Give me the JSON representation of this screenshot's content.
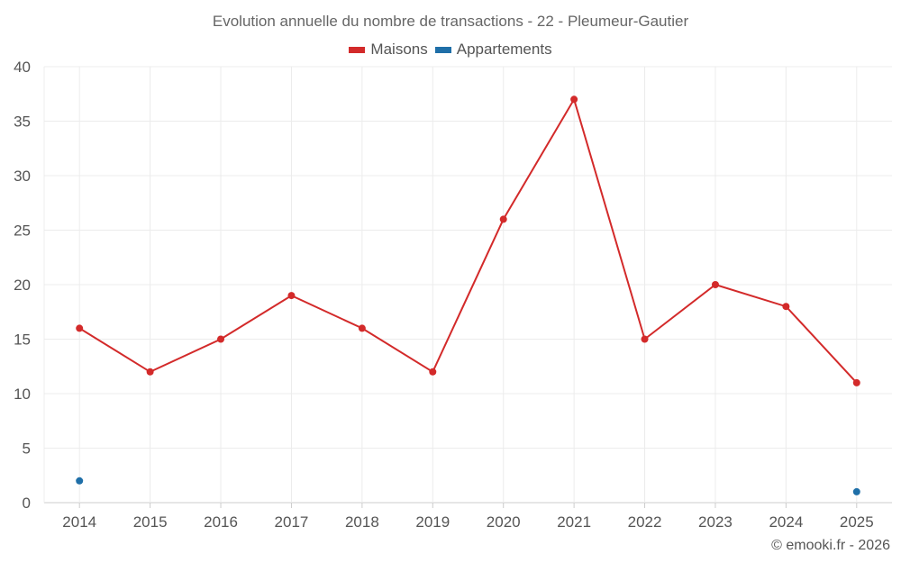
{
  "chart_data": {
    "type": "line",
    "title": "Evolution annuelle du nombre de transactions - 22 - Pleumeur-Gautier",
    "categories": [
      "2014",
      "2015",
      "2016",
      "2017",
      "2018",
      "2019",
      "2020",
      "2021",
      "2022",
      "2023",
      "2024",
      "2025"
    ],
    "series": [
      {
        "name": "Maisons",
        "color": "#d32a2a",
        "values": [
          16,
          12,
          15,
          19,
          16,
          12,
          26,
          37,
          15,
          20,
          18,
          11
        ]
      },
      {
        "name": "Appartements",
        "color": "#1f6fa8",
        "values": [
          2,
          null,
          null,
          null,
          null,
          null,
          null,
          null,
          null,
          null,
          null,
          1
        ]
      }
    ],
    "ylim": [
      0,
      40
    ],
    "yticks": [
      "0",
      "5",
      "10",
      "15",
      "20",
      "25",
      "30",
      "35",
      "40"
    ],
    "grid": true,
    "legend": "top-center"
  },
  "credit": "© emooki.fr - 2026"
}
